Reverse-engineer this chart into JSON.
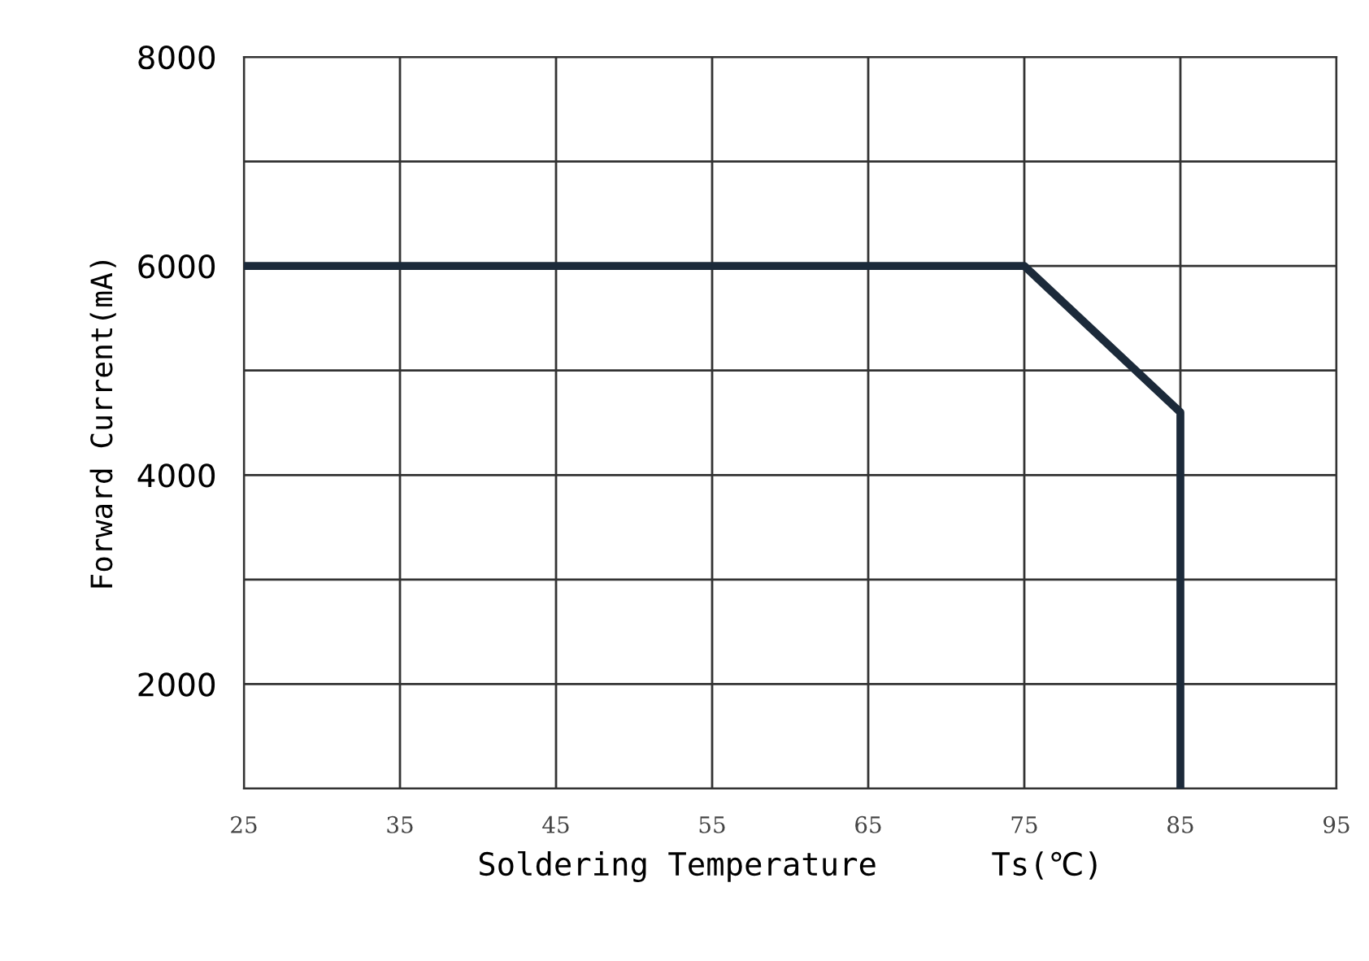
{
  "chart_data": {
    "type": "line",
    "xlabel": "Soldering Temperature      Ts(℃)",
    "ylabel": "Forward Current(mA)",
    "x": [
      25,
      75,
      85,
      85
    ],
    "series": [
      {
        "color": "#1c2a3a",
        "values": [
          6000,
          6000,
          4600,
          1000
        ]
      }
    ],
    "xlim": [
      25,
      95
    ],
    "xticks": [
      25,
      35,
      45,
      55,
      65,
      75,
      85,
      95
    ],
    "ylim": [
      1000,
      8000
    ],
    "yticks": [
      {
        "value": 1000,
        "label": null
      },
      2000,
      {
        "value": 3000,
        "label": null
      },
      4000,
      {
        "value": 5000,
        "label": null
      },
      6000,
      {
        "value": 7000,
        "label": null
      },
      8000
    ],
    "grid": true,
    "marker": "none",
    "line_style": "solid"
  }
}
